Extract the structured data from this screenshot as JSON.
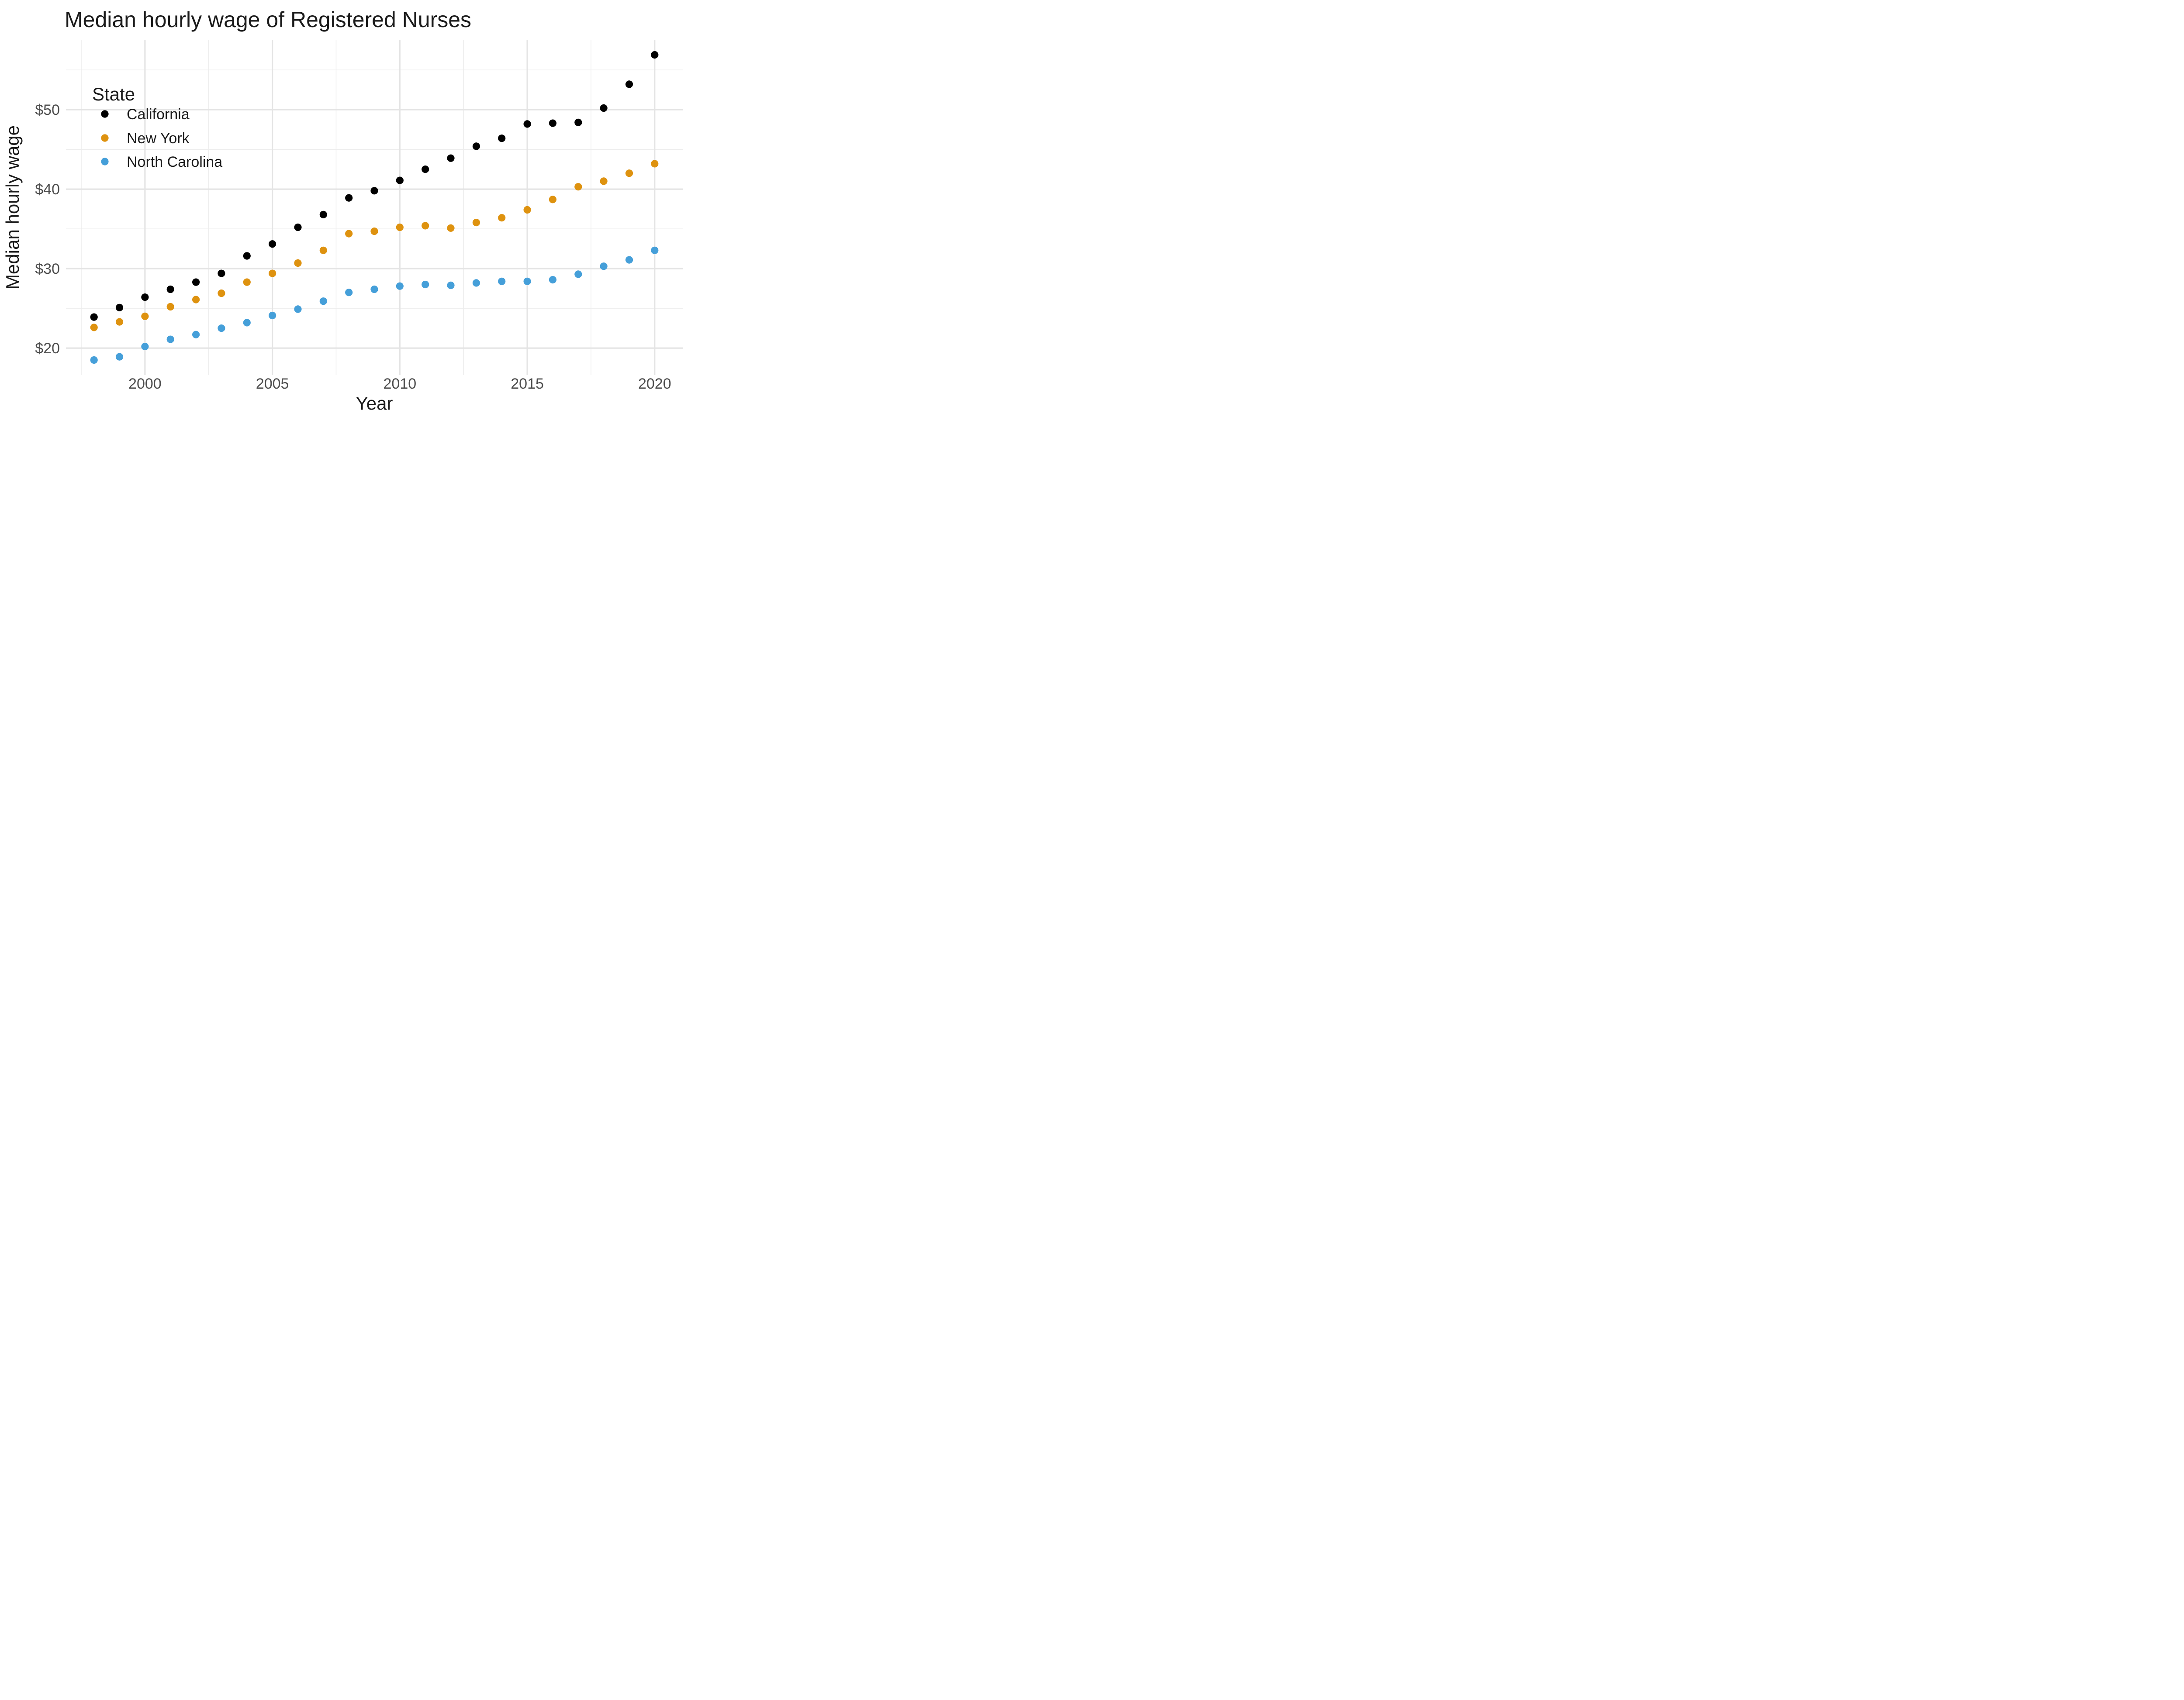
{
  "title": "Median hourly wage of Registered Nurses",
  "axes": {
    "x_title": "Year",
    "y_title": "Median hourly wage",
    "x_tick_labels": [
      "2000",
      "2005",
      "2010",
      "2015",
      "2020"
    ],
    "y_tick_labels": [
      "$20",
      "$30",
      "$40",
      "$50"
    ]
  },
  "legend": {
    "title": "State",
    "items": [
      {
        "label": "California",
        "color": "#000000"
      },
      {
        "label": "New York",
        "color": "#de920f"
      },
      {
        "label": "North Carolina",
        "color": "#459fd9"
      }
    ],
    "position": "inside-top-left"
  },
  "colors": {
    "background": "#ffffff",
    "grid_major": "#e4e4e4",
    "grid_minor": "#ededed",
    "tick_text": "#4d4d4d",
    "title_text": "#1a1a1a",
    "california": "#000000",
    "new_york": "#de920f",
    "north_carolina": "#459fd9"
  },
  "chart_data": {
    "type": "scatter",
    "title": "Median hourly wage of Registered Nurses",
    "xlabel": "Year",
    "ylabel": "Median hourly wage",
    "x": [
      1998,
      1999,
      2000,
      2001,
      2002,
      2003,
      2004,
      2005,
      2006,
      2007,
      2008,
      2009,
      2010,
      2011,
      2012,
      2013,
      2014,
      2015,
      2016,
      2017,
      2018,
      2019,
      2020
    ],
    "series": [
      {
        "name": "California",
        "color": "#000000",
        "values": [
          23.9,
          25.1,
          26.4,
          27.4,
          28.3,
          29.4,
          31.6,
          33.1,
          35.2,
          36.8,
          38.9,
          39.8,
          41.1,
          42.5,
          43.9,
          45.4,
          46.4,
          48.2,
          48.3,
          48.4,
          50.2,
          53.2,
          56.9
        ]
      },
      {
        "name": "New York",
        "color": "#de920f",
        "values": [
          22.6,
          23.3,
          24.0,
          25.2,
          26.1,
          26.9,
          28.3,
          29.4,
          30.7,
          32.3,
          34.4,
          34.7,
          35.2,
          35.4,
          35.1,
          35.8,
          36.4,
          37.4,
          38.7,
          40.3,
          41.0,
          42.0,
          43.2
        ]
      },
      {
        "name": "North Carolina",
        "color": "#459fd9",
        "values": [
          18.5,
          18.9,
          20.2,
          21.1,
          21.7,
          22.5,
          23.2,
          24.1,
          24.9,
          25.9,
          27.0,
          27.4,
          27.8,
          28.0,
          27.9,
          28.2,
          28.4,
          28.4,
          28.6,
          29.3,
          30.3,
          31.1,
          32.3
        ]
      }
    ],
    "x_ticks": {
      "major": [
        2000,
        2005,
        2010,
        2015,
        2020
      ],
      "minor": [
        1997.5,
        2002.5,
        2007.5,
        2012.5,
        2017.5
      ]
    },
    "y_ticks": {
      "major": [
        20,
        30,
        40,
        50
      ],
      "labels": [
        "$20",
        "$30",
        "$40",
        "$50"
      ],
      "minor": [
        25,
        35,
        45,
        55
      ]
    },
    "xlim": [
      1996.9,
      2021.1
    ],
    "ylim": [
      16.6,
      58.8
    ],
    "grid": true,
    "legend_position": "inside-top-left"
  }
}
